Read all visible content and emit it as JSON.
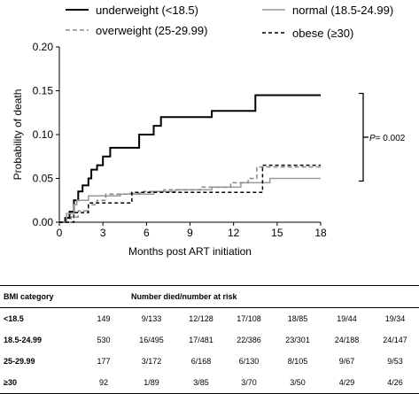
{
  "chart_data": {
    "type": "line",
    "chart_style": "step",
    "xlabel": "Months post ART initiation",
    "ylabel": "Probability of death",
    "xlim": [
      0,
      18
    ],
    "ylim": [
      0,
      0.2
    ],
    "xticks": [
      "0",
      "3",
      "6",
      "9",
      "12",
      "15",
      "18"
    ],
    "yticks": [
      "0.00",
      "0.05",
      "0.10",
      "0.15",
      "0.20"
    ],
    "grid": false,
    "legend_position": "top",
    "annotation": {
      "p_label": "P",
      "p_value": "= 0.002"
    },
    "series": [
      {
        "name": "underweight (<18.5)",
        "color": "#000000",
        "dash": "solid",
        "width": 2,
        "points": [
          [
            0,
            0
          ],
          [
            0.4,
            0.005
          ],
          [
            0.7,
            0.012
          ],
          [
            1.0,
            0.025
          ],
          [
            1.3,
            0.035
          ],
          [
            1.6,
            0.042
          ],
          [
            2.0,
            0.05
          ],
          [
            2.2,
            0.06
          ],
          [
            2.6,
            0.065
          ],
          [
            3.0,
            0.075
          ],
          [
            3.5,
            0.085
          ],
          [
            5.5,
            0.1
          ],
          [
            6.5,
            0.11
          ],
          [
            7.0,
            0.12
          ],
          [
            10.5,
            0.127
          ],
          [
            13.5,
            0.145
          ],
          [
            18,
            0.145
          ]
        ]
      },
      {
        "name": "normal (18.5-24.99)",
        "color": "#999999",
        "dash": "solid",
        "width": 1.5,
        "points": [
          [
            0,
            0
          ],
          [
            0.5,
            0.01
          ],
          [
            1.0,
            0.02
          ],
          [
            1.2,
            0.025
          ],
          [
            2.0,
            0.03
          ],
          [
            4.2,
            0.032
          ],
          [
            6.5,
            0.035
          ],
          [
            8.0,
            0.037
          ],
          [
            10.5,
            0.04
          ],
          [
            12.5,
            0.045
          ],
          [
            14.5,
            0.05
          ],
          [
            18,
            0.05
          ]
        ]
      },
      {
        "name": "overweight (25-29.99)",
        "color": "#888888",
        "dash": "5,3",
        "width": 1.5,
        "points": [
          [
            0,
            0
          ],
          [
            0.8,
            0.006
          ],
          [
            1.3,
            0.013
          ],
          [
            2.0,
            0.02
          ],
          [
            2.6,
            0.025
          ],
          [
            3.2,
            0.032
          ],
          [
            4.8,
            0.033
          ],
          [
            5.8,
            0.035
          ],
          [
            7.2,
            0.037
          ],
          [
            9.7,
            0.04
          ],
          [
            11.8,
            0.045
          ],
          [
            13.0,
            0.05
          ],
          [
            13.6,
            0.063
          ],
          [
            18,
            0.063
          ]
        ]
      },
      {
        "name": "obese (≥30)",
        "color": "#000000",
        "dash": "4,3",
        "width": 1.5,
        "points": [
          [
            0,
            0
          ],
          [
            1.0,
            0.011
          ],
          [
            2.0,
            0.022
          ],
          [
            5.0,
            0.034
          ],
          [
            14.0,
            0.034
          ],
          [
            14.0,
            0.065
          ],
          [
            18,
            0.065
          ]
        ]
      }
    ]
  },
  "risk_table": {
    "header_category": "BMI category",
    "header_numbers": "Number died/number at risk",
    "rows": [
      {
        "category": "<18.5",
        "n": "149",
        "values": [
          "9/133",
          "12/128",
          "17/108",
          "18/85",
          "19/44",
          "19/34"
        ]
      },
      {
        "category": "18.5-24.99",
        "n": "530",
        "values": [
          "16/495",
          "17/481",
          "22/386",
          "23/301",
          "24/188",
          "24/147"
        ]
      },
      {
        "category": "25-29.99",
        "n": "177",
        "values": [
          "3/172",
          "6/168",
          "6/130",
          "8/105",
          "9/67",
          "9/53"
        ]
      },
      {
        "category": "≥30",
        "n": "92",
        "values": [
          "1/89",
          "3/85",
          "3/70",
          "3/50",
          "4/29",
          "4/26"
        ]
      }
    ]
  }
}
